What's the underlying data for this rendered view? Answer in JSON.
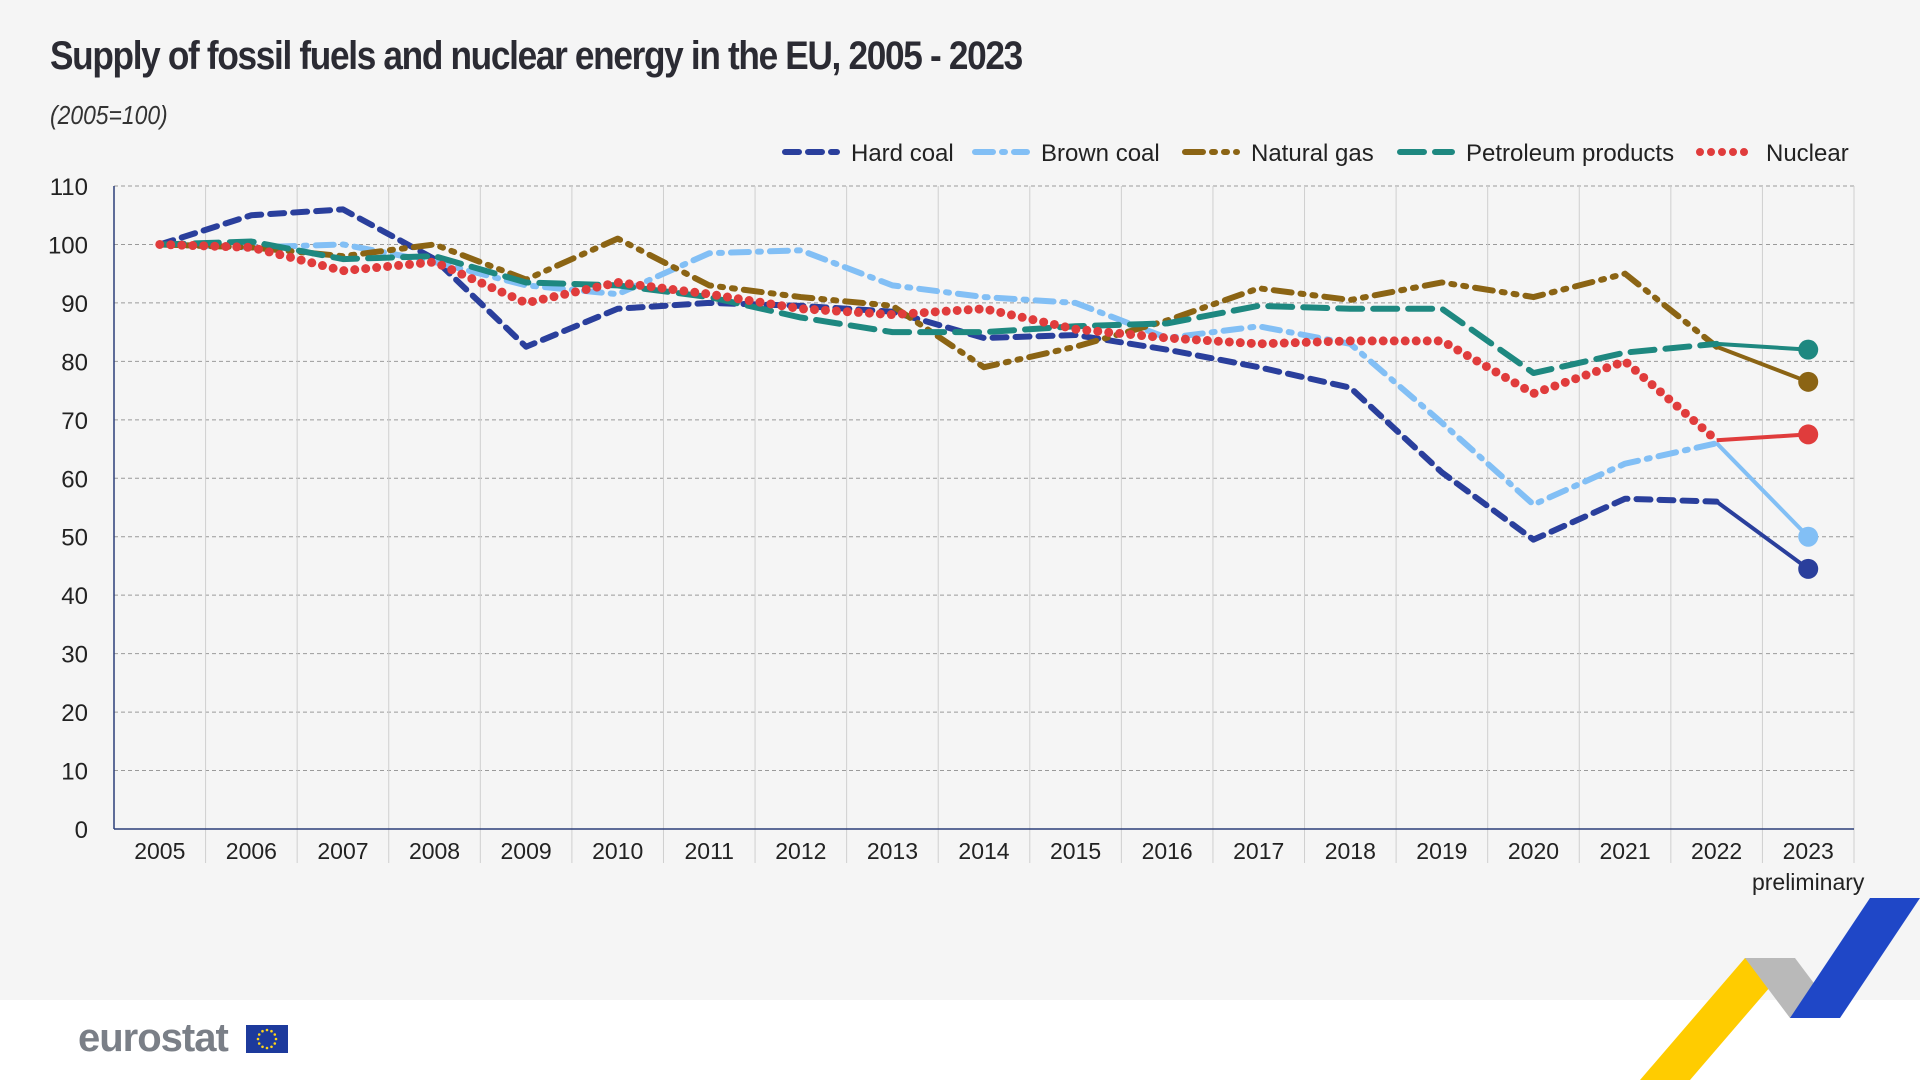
{
  "chart_data": {
    "type": "line",
    "title": "Supply of fossil fuels and nuclear energy in the EU, 2005 - 2023",
    "subtitle": "(2005=100)",
    "categories": [
      "2005",
      "2006",
      "2007",
      "2008",
      "2009",
      "2010",
      "2011",
      "2012",
      "2013",
      "2014",
      "2015",
      "2016",
      "2017",
      "2018",
      "2019",
      "2020",
      "2021",
      "2022",
      "2023"
    ],
    "category_note": {
      "2023": "preliminary"
    },
    "ylim": [
      0,
      110
    ],
    "yticks": [
      0,
      10,
      20,
      30,
      40,
      50,
      60,
      70,
      80,
      90,
      100,
      110
    ],
    "grid": true,
    "legend_placement": "top-right",
    "series": [
      {
        "name": "Hard coal",
        "color": "#2a3f9c",
        "style": "dashed",
        "values": [
          100,
          105,
          106,
          97.5,
          82.5,
          89,
          90,
          89.5,
          88.5,
          84,
          84.5,
          82,
          79,
          75.5,
          61,
          49.5,
          56.5,
          56,
          44.5
        ]
      },
      {
        "name": "Brown coal",
        "color": "#82bff5",
        "style": "dash-dot",
        "values": [
          100,
          99.5,
          100,
          97,
          93,
          91.5,
          98.5,
          99,
          93,
          91,
          90,
          84,
          86,
          83,
          69.5,
          55.5,
          62.5,
          66,
          50
        ]
      },
      {
        "name": "Natural gas",
        "color": "#8b6414",
        "style": "dash-dot-dot",
        "values": [
          100,
          99.5,
          98,
          100,
          94,
          101,
          93,
          91,
          89.5,
          79,
          82.5,
          87,
          92.5,
          90.5,
          93.5,
          91,
          95,
          82.5,
          76.5
        ]
      },
      {
        "name": "Petroleum products",
        "color": "#1e8880",
        "style": "long-dash",
        "values": [
          100,
          100.5,
          97.5,
          98,
          93.5,
          93,
          91,
          87.5,
          85,
          85,
          86,
          86.5,
          89.5,
          89,
          89,
          78,
          81.5,
          83,
          82
        ]
      },
      {
        "name": "Nuclear",
        "color": "#e03c3c",
        "style": "dotted",
        "values": [
          100,
          99.5,
          95.5,
          97,
          90,
          93.5,
          91.5,
          89,
          88,
          89,
          85.5,
          84,
          83,
          83.5,
          83.5,
          74.5,
          80,
          66.5,
          67.5
        ]
      }
    ]
  },
  "footer": {
    "logo": "eurostat"
  }
}
